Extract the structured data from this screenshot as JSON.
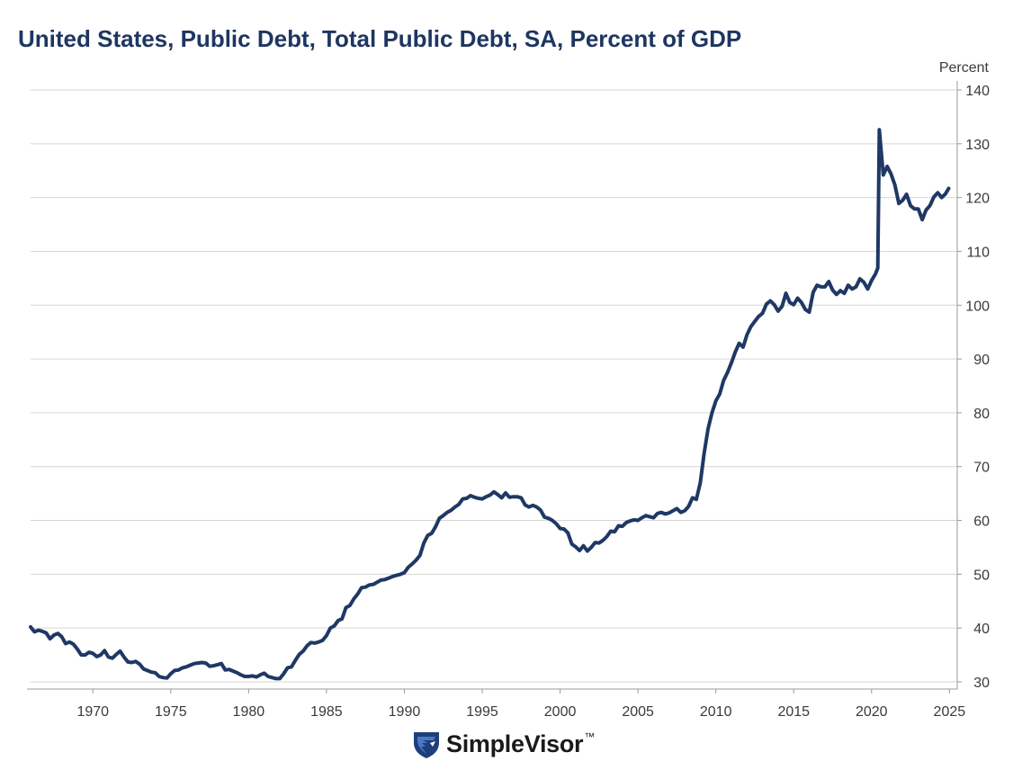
{
  "chart_data": {
    "type": "line",
    "title": "United States, Public Debt, Total Public Debt, SA, Percent of GDP",
    "ylabel": "Percent",
    "xlabel": "",
    "xlim": [
      1966.0,
      2025.5
    ],
    "ylim": [
      30,
      140
    ],
    "x_ticks": [
      "1970",
      "1975",
      "1980",
      "1985",
      "1990",
      "1995",
      "2000",
      "2005",
      "2010",
      "2015",
      "2020",
      "2025"
    ],
    "y_ticks": [
      "30",
      "40",
      "50",
      "60",
      "70",
      "80",
      "90",
      "100",
      "110",
      "120",
      "130",
      "140"
    ],
    "grid": true,
    "y_axis_side": "right",
    "legend": "none",
    "series": [
      {
        "color": "#1f3864",
        "points": [
          [
            1966.0,
            40.2
          ],
          [
            1966.25,
            39.3
          ],
          [
            1966.5,
            39.6
          ],
          [
            1966.75,
            39.4
          ],
          [
            1967.0,
            39.1
          ],
          [
            1967.25,
            38.0
          ],
          [
            1967.5,
            38.7
          ],
          [
            1967.75,
            39.0
          ],
          [
            1968.0,
            38.4
          ],
          [
            1968.25,
            37.1
          ],
          [
            1968.5,
            37.4
          ],
          [
            1968.75,
            37.0
          ],
          [
            1969.0,
            36.1
          ],
          [
            1969.25,
            35.0
          ],
          [
            1969.5,
            35.0
          ],
          [
            1969.75,
            35.5
          ],
          [
            1970.0,
            35.3
          ],
          [
            1970.25,
            34.7
          ],
          [
            1970.5,
            35.0
          ],
          [
            1970.75,
            35.8
          ],
          [
            1971.0,
            34.6
          ],
          [
            1971.25,
            34.4
          ],
          [
            1971.5,
            35.1
          ],
          [
            1971.75,
            35.7
          ],
          [
            1972.0,
            34.6
          ],
          [
            1972.25,
            33.7
          ],
          [
            1972.5,
            33.6
          ],
          [
            1972.75,
            33.8
          ],
          [
            1973.0,
            33.3
          ],
          [
            1973.25,
            32.4
          ],
          [
            1973.5,
            32.1
          ],
          [
            1973.75,
            31.8
          ],
          [
            1974.0,
            31.7
          ],
          [
            1974.25,
            31.0
          ],
          [
            1974.5,
            30.8
          ],
          [
            1974.75,
            30.7
          ],
          [
            1975.0,
            31.5
          ],
          [
            1975.25,
            32.1
          ],
          [
            1975.5,
            32.2
          ],
          [
            1975.75,
            32.6
          ],
          [
            1976.0,
            32.8
          ],
          [
            1976.25,
            33.1
          ],
          [
            1976.5,
            33.4
          ],
          [
            1976.75,
            33.5
          ],
          [
            1977.0,
            33.6
          ],
          [
            1977.25,
            33.5
          ],
          [
            1977.5,
            32.9
          ],
          [
            1977.75,
            33.0
          ],
          [
            1978.0,
            33.2
          ],
          [
            1978.25,
            33.4
          ],
          [
            1978.5,
            32.2
          ],
          [
            1978.75,
            32.3
          ],
          [
            1979.0,
            32.0
          ],
          [
            1979.25,
            31.7
          ],
          [
            1979.5,
            31.3
          ],
          [
            1979.75,
            31.0
          ],
          [
            1980.0,
            31.0
          ],
          [
            1980.25,
            31.1
          ],
          [
            1980.5,
            30.9
          ],
          [
            1980.75,
            31.3
          ],
          [
            1981.0,
            31.6
          ],
          [
            1981.25,
            31.0
          ],
          [
            1981.5,
            30.8
          ],
          [
            1981.75,
            30.6
          ],
          [
            1982.0,
            30.6
          ],
          [
            1982.25,
            31.5
          ],
          [
            1982.5,
            32.6
          ],
          [
            1982.75,
            32.8
          ],
          [
            1983.0,
            34.0
          ],
          [
            1983.25,
            35.1
          ],
          [
            1983.5,
            35.7
          ],
          [
            1983.75,
            36.7
          ],
          [
            1984.0,
            37.3
          ],
          [
            1984.25,
            37.2
          ],
          [
            1984.5,
            37.4
          ],
          [
            1984.75,
            37.7
          ],
          [
            1985.0,
            38.6
          ],
          [
            1985.25,
            40.0
          ],
          [
            1985.5,
            40.4
          ],
          [
            1985.75,
            41.4
          ],
          [
            1986.0,
            41.7
          ],
          [
            1986.25,
            43.8
          ],
          [
            1986.5,
            44.2
          ],
          [
            1986.75,
            45.4
          ],
          [
            1987.0,
            46.3
          ],
          [
            1987.25,
            47.5
          ],
          [
            1987.5,
            47.6
          ],
          [
            1987.75,
            48.0
          ],
          [
            1988.0,
            48.1
          ],
          [
            1988.25,
            48.5
          ],
          [
            1988.5,
            48.9
          ],
          [
            1988.75,
            49.0
          ],
          [
            1989.0,
            49.3
          ],
          [
            1989.25,
            49.6
          ],
          [
            1989.5,
            49.8
          ],
          [
            1989.75,
            50.0
          ],
          [
            1990.0,
            50.3
          ],
          [
            1990.25,
            51.3
          ],
          [
            1990.5,
            51.9
          ],
          [
            1990.75,
            52.6
          ],
          [
            1991.0,
            53.5
          ],
          [
            1991.25,
            55.8
          ],
          [
            1991.5,
            57.2
          ],
          [
            1991.75,
            57.6
          ],
          [
            1992.0,
            58.8
          ],
          [
            1992.25,
            60.4
          ],
          [
            1992.5,
            60.9
          ],
          [
            1992.75,
            61.5
          ],
          [
            1993.0,
            61.9
          ],
          [
            1993.25,
            62.5
          ],
          [
            1993.5,
            63.0
          ],
          [
            1993.75,
            64.0
          ],
          [
            1994.0,
            64.1
          ],
          [
            1994.25,
            64.6
          ],
          [
            1994.5,
            64.3
          ],
          [
            1994.75,
            64.1
          ],
          [
            1995.0,
            64.0
          ],
          [
            1995.25,
            64.4
          ],
          [
            1995.5,
            64.7
          ],
          [
            1995.75,
            65.3
          ],
          [
            1996.0,
            64.8
          ],
          [
            1996.25,
            64.2
          ],
          [
            1996.5,
            65.1
          ],
          [
            1996.75,
            64.3
          ],
          [
            1997.0,
            64.4
          ],
          [
            1997.25,
            64.4
          ],
          [
            1997.5,
            64.2
          ],
          [
            1997.75,
            62.9
          ],
          [
            1998.0,
            62.5
          ],
          [
            1998.25,
            62.8
          ],
          [
            1998.5,
            62.5
          ],
          [
            1998.75,
            61.9
          ],
          [
            1999.0,
            60.6
          ],
          [
            1999.25,
            60.4
          ],
          [
            1999.5,
            60.0
          ],
          [
            1999.75,
            59.4
          ],
          [
            2000.0,
            58.5
          ],
          [
            2000.25,
            58.4
          ],
          [
            2000.5,
            57.7
          ],
          [
            2000.75,
            55.6
          ],
          [
            2001.0,
            55.1
          ],
          [
            2001.25,
            54.4
          ],
          [
            2001.5,
            55.3
          ],
          [
            2001.75,
            54.3
          ],
          [
            2002.0,
            55.0
          ],
          [
            2002.25,
            55.9
          ],
          [
            2002.5,
            55.8
          ],
          [
            2002.75,
            56.3
          ],
          [
            2003.0,
            57.0
          ],
          [
            2003.25,
            58.0
          ],
          [
            2003.5,
            57.9
          ],
          [
            2003.75,
            59.0
          ],
          [
            2004.0,
            58.9
          ],
          [
            2004.25,
            59.6
          ],
          [
            2004.5,
            59.9
          ],
          [
            2004.75,
            60.1
          ],
          [
            2005.0,
            60.0
          ],
          [
            2005.25,
            60.5
          ],
          [
            2005.5,
            60.9
          ],
          [
            2005.75,
            60.7
          ],
          [
            2006.0,
            60.5
          ],
          [
            2006.25,
            61.3
          ],
          [
            2006.5,
            61.5
          ],
          [
            2006.75,
            61.2
          ],
          [
            2007.0,
            61.4
          ],
          [
            2007.25,
            61.8
          ],
          [
            2007.5,
            62.2
          ],
          [
            2007.75,
            61.5
          ],
          [
            2008.0,
            61.8
          ],
          [
            2008.25,
            62.6
          ],
          [
            2008.5,
            64.2
          ],
          [
            2008.75,
            63.9
          ],
          [
            2009.0,
            67.0
          ],
          [
            2009.25,
            72.5
          ],
          [
            2009.5,
            77.0
          ],
          [
            2009.75,
            80.0
          ],
          [
            2010.0,
            82.2
          ],
          [
            2010.25,
            83.5
          ],
          [
            2010.5,
            86.0
          ],
          [
            2010.75,
            87.5
          ],
          [
            2011.0,
            89.3
          ],
          [
            2011.25,
            91.3
          ],
          [
            2011.5,
            92.9
          ],
          [
            2011.75,
            92.2
          ],
          [
            2012.0,
            94.5
          ],
          [
            2012.25,
            96.0
          ],
          [
            2012.5,
            97.0
          ],
          [
            2012.75,
            97.9
          ],
          [
            2013.0,
            98.5
          ],
          [
            2013.25,
            100.2
          ],
          [
            2013.5,
            100.8
          ],
          [
            2013.75,
            100.1
          ],
          [
            2014.0,
            98.9
          ],
          [
            2014.25,
            99.8
          ],
          [
            2014.5,
            102.2
          ],
          [
            2014.75,
            100.5
          ],
          [
            2015.0,
            100.1
          ],
          [
            2015.25,
            101.3
          ],
          [
            2015.5,
            100.5
          ],
          [
            2015.75,
            99.2
          ],
          [
            2016.0,
            98.7
          ],
          [
            2016.25,
            102.4
          ],
          [
            2016.5,
            103.7
          ],
          [
            2016.75,
            103.4
          ],
          [
            2017.0,
            103.4
          ],
          [
            2017.25,
            104.4
          ],
          [
            2017.5,
            102.8
          ],
          [
            2017.75,
            102.0
          ],
          [
            2018.0,
            102.7
          ],
          [
            2018.25,
            102.2
          ],
          [
            2018.5,
            103.7
          ],
          [
            2018.75,
            103.0
          ],
          [
            2019.0,
            103.4
          ],
          [
            2019.25,
            104.9
          ],
          [
            2019.5,
            104.3
          ],
          [
            2019.75,
            103.0
          ],
          [
            2020.0,
            104.6
          ],
          [
            2020.25,
            105.8
          ],
          [
            2020.4,
            106.9
          ],
          [
            2020.5,
            132.6
          ],
          [
            2020.75,
            124.2
          ],
          [
            2021.0,
            125.8
          ],
          [
            2021.25,
            124.4
          ],
          [
            2021.5,
            122.3
          ],
          [
            2021.75,
            118.9
          ],
          [
            2022.0,
            119.5
          ],
          [
            2022.25,
            120.6
          ],
          [
            2022.5,
            118.5
          ],
          [
            2022.75,
            117.9
          ],
          [
            2023.0,
            117.9
          ],
          [
            2023.25,
            115.9
          ],
          [
            2023.5,
            117.7
          ],
          [
            2023.75,
            118.5
          ],
          [
            2024.0,
            120.1
          ],
          [
            2024.25,
            120.9
          ],
          [
            2024.5,
            120.0
          ],
          [
            2024.75,
            120.7
          ],
          [
            2024.95,
            121.7
          ]
        ]
      }
    ]
  },
  "brand": {
    "name": "SimpleVisor",
    "tm": "™"
  }
}
